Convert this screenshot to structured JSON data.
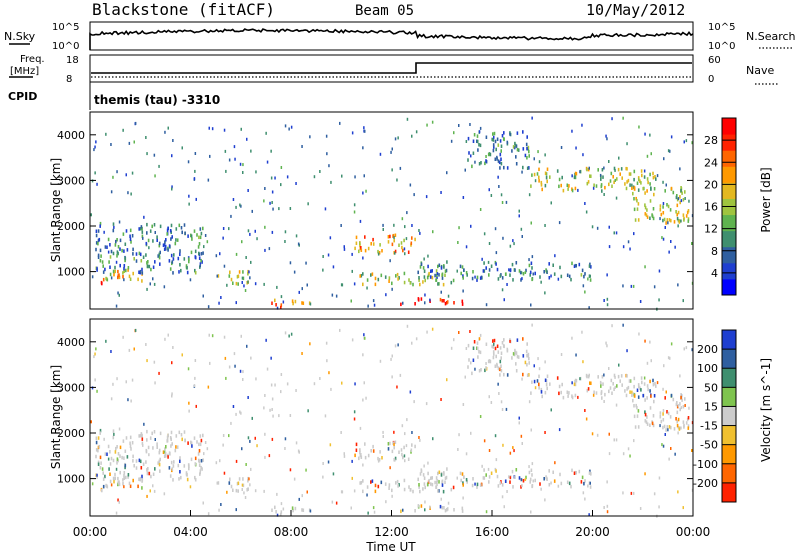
{
  "header": {
    "station": "Blackstone (fitACF)",
    "beam": "Beam 05",
    "date": "10/May/2012"
  },
  "top_panels": {
    "nsky_label": "N.Sky",
    "nsky_ticks": [
      "10^5",
      "10^0"
    ],
    "nsearch_label": "N.Search",
    "nsearch_ticks": [
      "10^5",
      "10^0"
    ],
    "freq_label_1": "Freq.",
    "freq_label_2": "[MHz]",
    "freq_ticks": [
      "18",
      "8"
    ],
    "nave_label": "Nave",
    "nave_ticks": [
      "60",
      "0"
    ],
    "cpid_label": "CPID",
    "cpid_text": "themis (tau) -3310"
  },
  "chart_data": [
    {
      "type": "heatmap",
      "name": "power",
      "ylabel": "Slant Range [km]",
      "ylim": [
        180,
        4500
      ],
      "yticks": [
        1000,
        2000,
        3000,
        4000
      ],
      "xlim": [
        0,
        24
      ],
      "colorbar": {
        "label": "Power [dB]",
        "ticks": [
          4,
          8,
          12,
          16,
          20,
          24,
          28
        ],
        "range": [
          0,
          32
        ],
        "colors": [
          "#0000ff",
          "#1f3fd0",
          "#2f5fa0",
          "#3f8f6f",
          "#5fb34f",
          "#9fc43f",
          "#e3b820",
          "#ff9900",
          "#ff6600",
          "#ff2200",
          "#ff0000"
        ]
      },
      "bands": [
        {
          "t0": 0.1,
          "t1": 0.6,
          "r0": 750,
          "r1": 900,
          "level": 28
        },
        {
          "t0": 0.6,
          "t1": 2.3,
          "r0": 800,
          "r1": 1100,
          "level": 20
        },
        {
          "t0": 0.2,
          "t1": 4.5,
          "r0": 1000,
          "r1": 2100,
          "level": 8
        },
        {
          "t0": 5.0,
          "t1": 6.3,
          "r0": 750,
          "r1": 1050,
          "level": 18
        },
        {
          "t0": 7.2,
          "t1": 8.8,
          "r0": 250,
          "r1": 420,
          "level": 22
        },
        {
          "t0": 10.5,
          "t1": 13.0,
          "r0": 1450,
          "r1": 1850,
          "level": 22
        },
        {
          "t0": 10.6,
          "t1": 14.5,
          "r0": 750,
          "r1": 1000,
          "level": 16
        },
        {
          "t0": 12.3,
          "t1": 14.8,
          "r0": 300,
          "r1": 450,
          "level": 28
        },
        {
          "t0": 13.0,
          "t1": 20.0,
          "r0": 850,
          "r1": 1250,
          "level": 8
        },
        {
          "t0": 17.5,
          "t1": 22.5,
          "r0": 2800,
          "r1": 3300,
          "level": 16
        },
        {
          "t0": 21.5,
          "t1": 23.8,
          "r0": 2100,
          "r1": 2900,
          "level": 16
        },
        {
          "t0": 15.0,
          "t1": 17.5,
          "r0": 3300,
          "r1": 4100,
          "level": 8
        }
      ]
    },
    {
      "type": "heatmap",
      "name": "velocity",
      "ylabel": "Slant Range [km]",
      "xlabel": "Time UT",
      "ylim": [
        180,
        4500
      ],
      "yticks": [
        1000,
        2000,
        3000,
        4000
      ],
      "xlim": [
        0,
        24
      ],
      "xticks": [
        "00:00",
        "04:00",
        "08:00",
        "12:00",
        "16:00",
        "20:00",
        "00:00"
      ],
      "colorbar": {
        "label": "Velocity [m s^-1]",
        "ticks": [
          "200",
          "100",
          "50",
          "15",
          "-15",
          "-50",
          "-100",
          "-200"
        ],
        "colors": [
          "#1f3fd0",
          "#2f5fa0",
          "#3f8f6f",
          "#7fc44f",
          "#cccccc",
          "#f0c030",
          "#ff9900",
          "#ff6600",
          "#ff2200"
        ]
      }
    }
  ]
}
